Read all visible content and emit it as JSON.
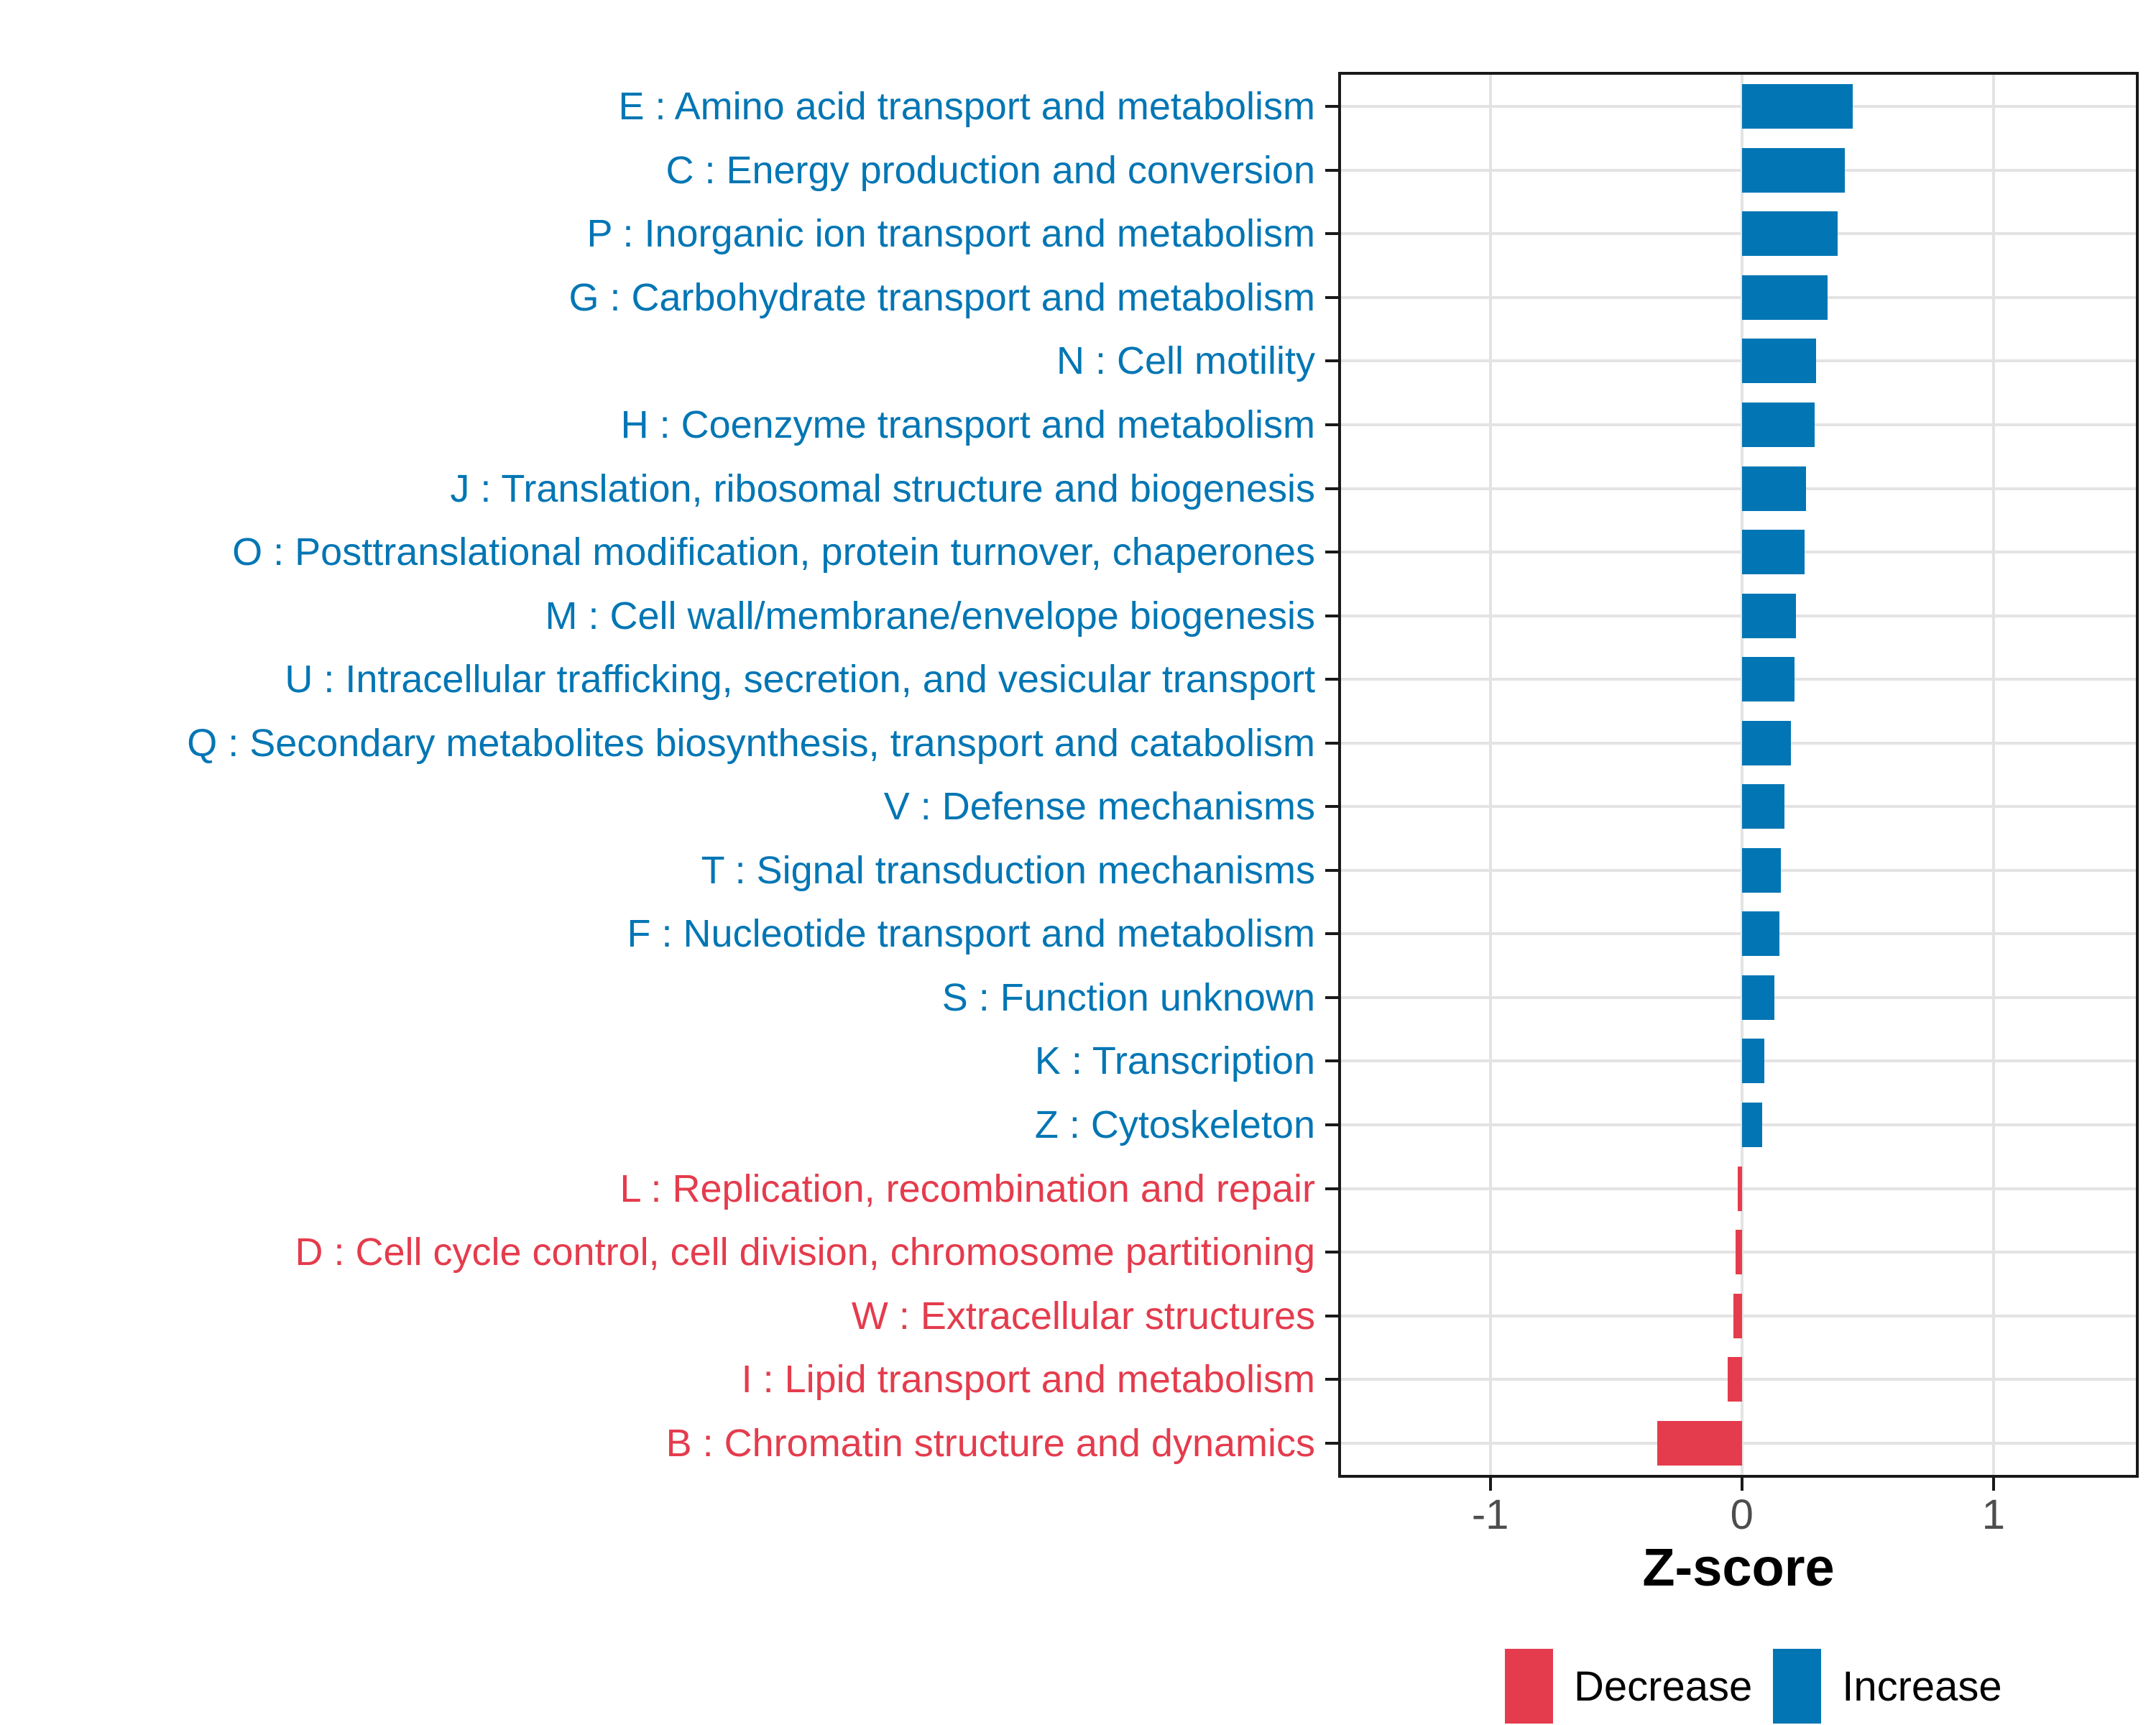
{
  "chart_data": {
    "type": "bar",
    "orientation": "horizontal",
    "title": "",
    "xlabel": "Z-score",
    "ylabel": "",
    "xlim": [
      -1.593,
      1.566
    ],
    "x_tick_values": [
      -1,
      0,
      1
    ],
    "x_tick_labels": [
      "-1",
      "0",
      "1"
    ],
    "grid": {
      "vertical_major": true,
      "horizontal_major": true,
      "minor": false
    },
    "legend_position": "bottom-right",
    "legend": [
      {
        "label": "Decrease",
        "color": "#E43C4D"
      },
      {
        "label": "Increase",
        "color": "#0276B4"
      }
    ],
    "categories": [
      {
        "code": "E",
        "label": "E : Amino acid transport and metabolism",
        "value": 0.44,
        "direction": "Increase"
      },
      {
        "code": "C",
        "label": "C : Energy production and conversion",
        "value": 0.41,
        "direction": "Increase"
      },
      {
        "code": "P",
        "label": "P : Inorganic ion transport and metabolism",
        "value": 0.38,
        "direction": "Increase"
      },
      {
        "code": "G",
        "label": "G : Carbohydrate transport and metabolism",
        "value": 0.34,
        "direction": "Increase"
      },
      {
        "code": "N",
        "label": "N : Cell motility",
        "value": 0.295,
        "direction": "Increase"
      },
      {
        "code": "H",
        "label": "H : Coenzyme transport and metabolism",
        "value": 0.29,
        "direction": "Increase"
      },
      {
        "code": "J",
        "label": "J : Translation, ribosomal structure and biogenesis",
        "value": 0.255,
        "direction": "Increase"
      },
      {
        "code": "O",
        "label": "O : Posttranslational modification, protein turnover, chaperones",
        "value": 0.25,
        "direction": "Increase"
      },
      {
        "code": "M",
        "label": "M : Cell wall/membrane/envelope biogenesis",
        "value": 0.215,
        "direction": "Increase"
      },
      {
        "code": "U",
        "label": "U : Intracellular trafficking, secretion, and vesicular transport",
        "value": 0.21,
        "direction": "Increase"
      },
      {
        "code": "Q",
        "label": "Q : Secondary metabolites biosynthesis, transport and catabolism",
        "value": 0.195,
        "direction": "Increase"
      },
      {
        "code": "V",
        "label": "V : Defense mechanisms",
        "value": 0.17,
        "direction": "Increase"
      },
      {
        "code": "T",
        "label": "T : Signal transduction mechanisms",
        "value": 0.155,
        "direction": "Increase"
      },
      {
        "code": "F",
        "label": "F : Nucleotide transport and metabolism",
        "value": 0.15,
        "direction": "Increase"
      },
      {
        "code": "S",
        "label": "S : Function unknown",
        "value": 0.13,
        "direction": "Increase"
      },
      {
        "code": "K",
        "label": "K : Transcription",
        "value": 0.09,
        "direction": "Increase"
      },
      {
        "code": "Z",
        "label": "Z : Cytoskeleton",
        "value": 0.08,
        "direction": "Increase"
      },
      {
        "code": "L",
        "label": "L : Replication, recombination and repair",
        "value": -0.015,
        "direction": "Decrease"
      },
      {
        "code": "D",
        "label": "D : Cell cycle control, cell division, chromosome partitioning",
        "value": -0.025,
        "direction": "Decrease"
      },
      {
        "code": "W",
        "label": "W : Extracellular structures",
        "value": -0.033,
        "direction": "Decrease"
      },
      {
        "code": "I",
        "label": "I : Lipid transport and metabolism",
        "value": -0.055,
        "direction": "Decrease"
      },
      {
        "code": "B",
        "label": "B : Chromatin structure and dynamics",
        "value": -0.335,
        "direction": "Decrease"
      }
    ],
    "colors": {
      "increase": "#0276B4",
      "decrease": "#E43C4D",
      "gridline": "#E3E3E3",
      "panel_border": "#1A1A1A",
      "tick": "#1A1A1A",
      "tick_label": "#4D4D4D",
      "axis_title": "#000000"
    }
  }
}
